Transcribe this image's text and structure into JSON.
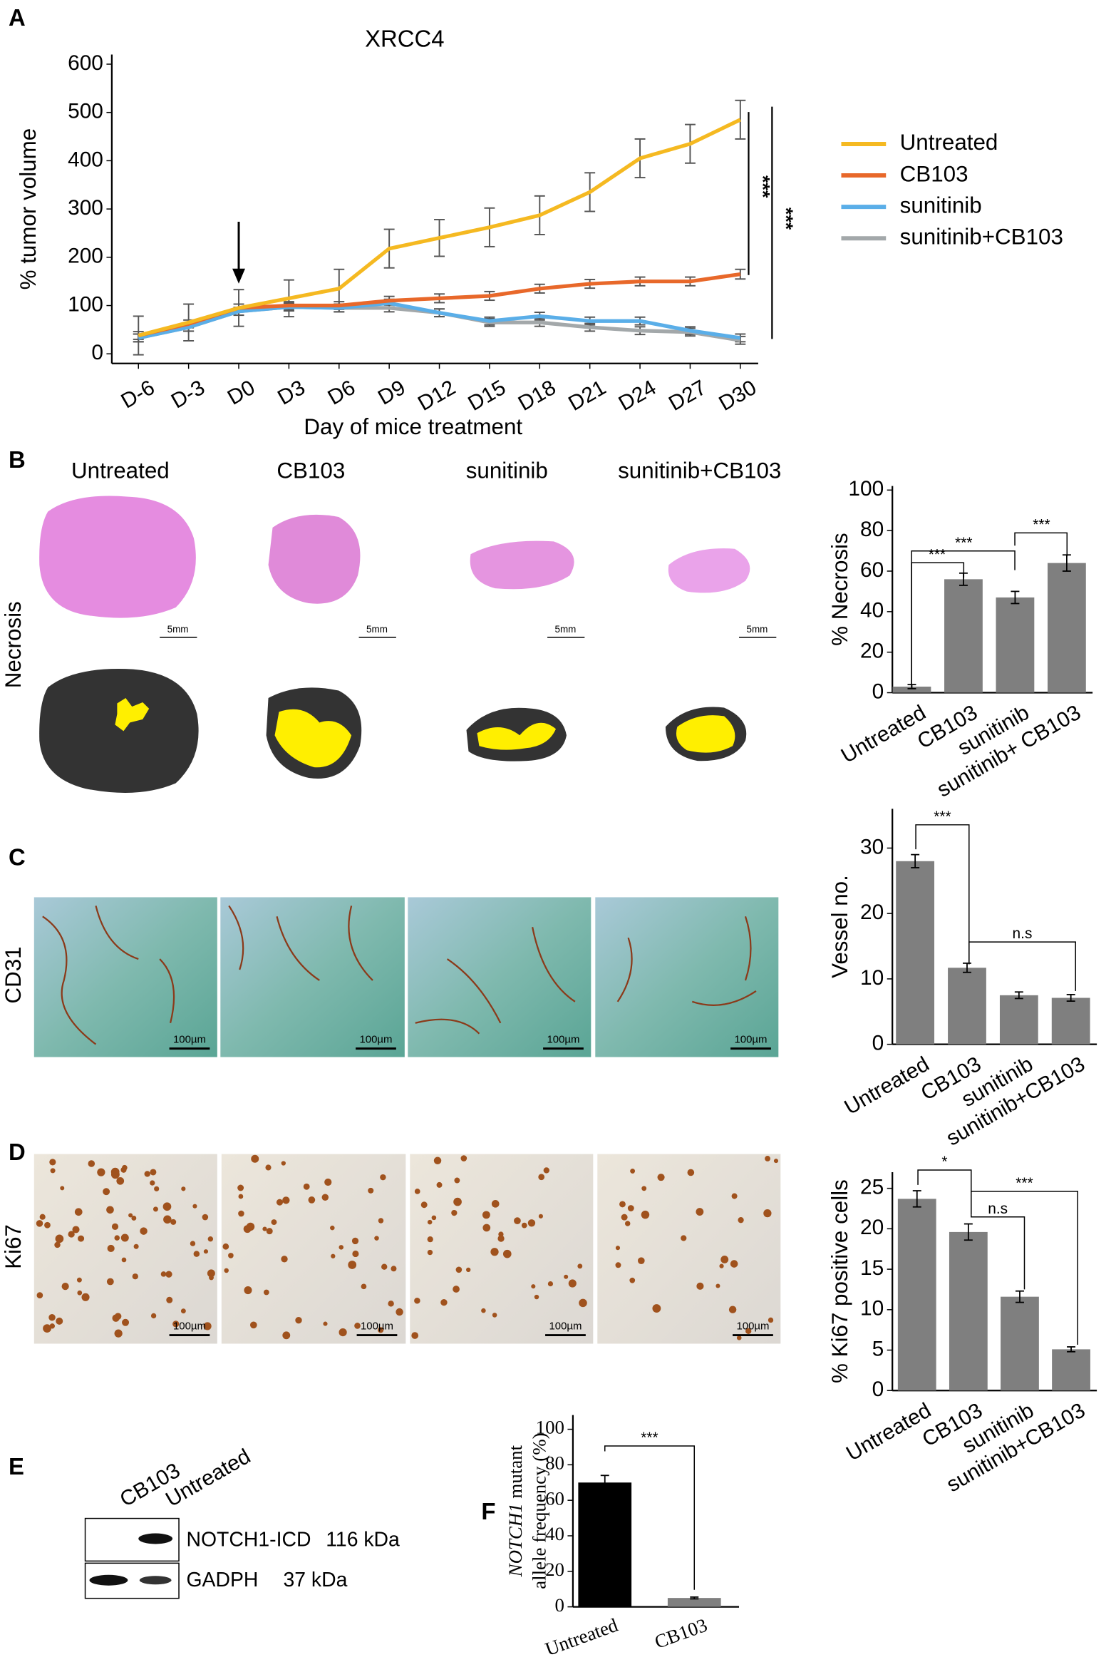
{
  "chart_data": [
    {
      "type": "line",
      "title": "XRCC4",
      "y_label": "% tumor volume",
      "x_label": "Day of mice treatment",
      "categories": [
        "D-6",
        "D-3",
        "D0",
        "D3",
        "D6",
        "D9",
        "D12",
        "D15",
        "D18",
        "D21",
        "D24",
        "D27",
        "D30"
      ],
      "series": [
        {
          "name": "Untreated",
          "color": "#f5b921",
          "values": [
            38,
            65,
            95,
            115,
            135,
            218,
            240,
            262,
            287,
            335,
            405,
            435,
            485
          ],
          "errors": [
            40,
            38,
            38,
            38,
            40,
            40,
            38,
            40,
            40,
            40,
            40,
            40,
            40
          ]
        },
        {
          "name": "CB103",
          "color": "#e8682a",
          "values": [
            38,
            62,
            95,
            100,
            100,
            110,
            115,
            120,
            135,
            145,
            150,
            150,
            165
          ],
          "errors": [
            8,
            8,
            8,
            8,
            8,
            9,
            9,
            9,
            9,
            9,
            9,
            9,
            10
          ]
        },
        {
          "name": "sunitinib",
          "color": "#5aaee8",
          "values": [
            33,
            55,
            88,
            97,
            95,
            105,
            85,
            68,
            78,
            68,
            68,
            48,
            33
          ],
          "errors": [
            8,
            8,
            8,
            8,
            8,
            8,
            8,
            8,
            8,
            8,
            8,
            8,
            8
          ]
        },
        {
          "name": "sunitinib+CB103",
          "color": "#a3a8aa",
          "values": [
            33,
            55,
            88,
            97,
            95,
            95,
            85,
            65,
            65,
            55,
            48,
            45,
            28
          ],
          "errors": [
            8,
            8,
            8,
            8,
            8,
            8,
            8,
            8,
            8,
            8,
            8,
            8,
            8
          ]
        }
      ],
      "ylim": [
        -20,
        620
      ],
      "yticks": [
        0,
        100,
        200,
        300,
        400,
        500,
        600
      ],
      "annotations": [
        "***",
        "***"
      ],
      "legend": "right"
    },
    {
      "type": "bar",
      "y_label": "% Necrosis",
      "categories": [
        "Untreated",
        "CB103",
        "sunitinib",
        "sunitinib+ CB103"
      ],
      "values": [
        3,
        56,
        47,
        64
      ],
      "errors": [
        1,
        3,
        3,
        4
      ],
      "color": "#7f7f7f",
      "ylim": [
        0,
        102
      ],
      "yticks": [
        0,
        20,
        40,
        60,
        80,
        100
      ],
      "annotations": [
        "***",
        "***",
        "***"
      ]
    },
    {
      "type": "bar",
      "y_label": "Vessel no.",
      "categories": [
        "Untreated",
        "CB103",
        "sunitinib",
        "sunitinib+CB103"
      ],
      "values": [
        28,
        11.7,
        7.5,
        7.1
      ],
      "errors": [
        1,
        0.7,
        0.5,
        0.5
      ],
      "color": "#7f7f7f",
      "ylim": [
        0,
        36
      ],
      "yticks": [
        0,
        10,
        20,
        30
      ],
      "annotations": [
        "***",
        "n.s"
      ]
    },
    {
      "type": "bar",
      "y_label": "% Ki67 positive cells",
      "categories": [
        "Untreated",
        "CB103",
        "sunitinib",
        "sunitinib+CB103"
      ],
      "values": [
        23.7,
        19.6,
        11.6,
        5.1
      ],
      "errors": [
        1,
        1,
        0.7,
        0.3
      ],
      "color": "#7f7f7f",
      "ylim": [
        0,
        27
      ],
      "yticks": [
        0,
        5,
        10,
        15,
        20,
        25
      ],
      "annotations": [
        "*",
        "n.s",
        "***"
      ]
    },
    {
      "type": "bar",
      "y_label": [
        "NOTCH1",
        " mutant",
        "allele frequency (%)"
      ],
      "categories": [
        "Untreated",
        "CB103"
      ],
      "values": [
        70,
        5
      ],
      "errors": [
        4,
        0.5
      ],
      "colors": [
        "#000000",
        "#7f7f7f"
      ],
      "ylim": [
        0,
        108
      ],
      "yticks": [
        0,
        20,
        40,
        60,
        80,
        100
      ],
      "annotations": [
        "***"
      ]
    }
  ],
  "figure": {
    "panel_letters": [
      "A",
      "B",
      "C",
      "D",
      "E",
      "F"
    ],
    "b_columns": [
      "Untreated",
      "CB103",
      "sunitinib",
      "sunitinib+CB103"
    ],
    "row_labels": [
      "Necrosis",
      "CD31",
      "Ki67"
    ],
    "scale_b": [
      "5mm",
      "5mm",
      "5mm",
      "5mm"
    ],
    "scale_cd": [
      "100µm",
      "100µm",
      "100µm",
      "100µm",
      "100µm",
      "100µm",
      "100µm",
      "100µm"
    ],
    "blot": {
      "lanes": [
        "CB103",
        "Untreated"
      ],
      "bands": [
        {
          "name": "NOTCH1-ICD",
          "size": "116 kDa"
        },
        {
          "name": "GADPH",
          "size": "37 kDa"
        }
      ]
    }
  }
}
